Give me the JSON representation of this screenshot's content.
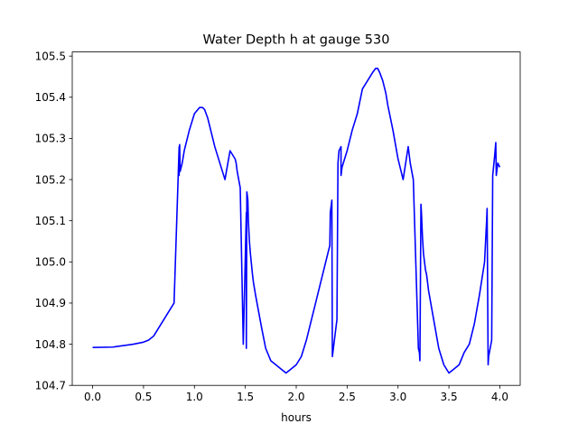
{
  "chart_data": {
    "type": "line",
    "title": "Water Depth h at gauge 530",
    "xlabel": "hours",
    "ylabel": "",
    "xlim": [
      -0.2,
      4.2
    ],
    "ylim": [
      104.7,
      105.51
    ],
    "xticks": [
      0.0,
      0.5,
      1.0,
      1.5,
      2.0,
      2.5,
      3.0,
      3.5,
      4.0
    ],
    "xtick_labels": [
      "0.0",
      "0.5",
      "1.0",
      "1.5",
      "2.0",
      "2.5",
      "3.0",
      "3.5",
      "4.0"
    ],
    "yticks": [
      104.7,
      104.8,
      104.9,
      105.0,
      105.1,
      105.2,
      105.3,
      105.4,
      105.5
    ],
    "ytick_labels": [
      "104.7",
      "104.8",
      "104.9",
      "105.0",
      "105.1",
      "105.2",
      "105.3",
      "105.4",
      "105.5"
    ],
    "grid": false,
    "series": [
      {
        "color": "#0000ff",
        "x": [
          0.0,
          0.2,
          0.4,
          0.5,
          0.55,
          0.6,
          0.65,
          0.7,
          0.75,
          0.8,
          0.85,
          0.85,
          0.855,
          0.86,
          0.88,
          0.9,
          0.95,
          1.0,
          1.05,
          1.08,
          1.1,
          1.13,
          1.15,
          1.2,
          1.25,
          1.3,
          1.35,
          1.4,
          1.41,
          1.42,
          1.45,
          1.48,
          1.51,
          1.51,
          1.515,
          1.525,
          1.53,
          1.54,
          1.55,
          1.57,
          1.58,
          1.6,
          1.63,
          1.66,
          1.7,
          1.75,
          1.8,
          1.85,
          1.9,
          1.95,
          2.0,
          2.05,
          2.1,
          2.15,
          2.2,
          2.25,
          2.3,
          2.33,
          2.335,
          2.35,
          2.355,
          2.36,
          2.4,
          2.41,
          2.42,
          2.44,
          2.44,
          2.45,
          2.5,
          2.55,
          2.6,
          2.65,
          2.7,
          2.75,
          2.78,
          2.8,
          2.82,
          2.85,
          2.88,
          2.9,
          2.95,
          3.0,
          3.05,
          3.1,
          3.11,
          3.12,
          3.15,
          3.2,
          3.21,
          3.215,
          3.225,
          3.23,
          3.24,
          3.25,
          3.27,
          3.28,
          3.3,
          3.35,
          3.4,
          3.45,
          3.5,
          3.55,
          3.6,
          3.65,
          3.7,
          3.75,
          3.8,
          3.85,
          3.87,
          3.875,
          3.885,
          3.89,
          3.92,
          3.93,
          3.95,
          3.96,
          3.965,
          3.97,
          3.98,
          4.0
        ],
        "y": [
          104.792,
          104.793,
          104.8,
          104.805,
          104.81,
          104.82,
          104.84,
          104.86,
          104.88,
          104.9,
          105.28,
          105.21,
          105.285,
          105.22,
          105.24,
          105.27,
          105.32,
          105.36,
          105.375,
          105.375,
          105.37,
          105.35,
          105.33,
          105.28,
          105.24,
          105.2,
          105.27,
          105.25,
          105.24,
          105.22,
          105.18,
          104.8,
          105.12,
          104.79,
          105.17,
          105.15,
          105.1,
          105.05,
          105.02,
          104.97,
          104.95,
          104.92,
          104.88,
          104.84,
          104.79,
          104.76,
          104.75,
          104.74,
          104.73,
          104.74,
          104.75,
          104.77,
          104.81,
          104.86,
          104.91,
          104.96,
          105.01,
          105.04,
          105.12,
          105.15,
          104.77,
          104.78,
          104.86,
          105.24,
          105.27,
          105.28,
          105.21,
          105.23,
          105.27,
          105.32,
          105.36,
          105.42,
          105.44,
          105.46,
          105.47,
          105.47,
          105.46,
          105.44,
          105.41,
          105.38,
          105.32,
          105.25,
          105.2,
          105.28,
          105.26,
          105.24,
          105.2,
          104.79,
          104.78,
          104.76,
          105.14,
          105.12,
          105.06,
          105.02,
          104.98,
          104.97,
          104.93,
          104.86,
          104.79,
          104.75,
          104.73,
          104.74,
          104.75,
          104.78,
          104.8,
          104.85,
          104.92,
          105.0,
          105.1,
          105.13,
          104.75,
          104.77,
          104.81,
          105.21,
          105.26,
          105.29,
          105.21,
          105.22,
          105.24,
          105.23
        ]
      }
    ]
  }
}
